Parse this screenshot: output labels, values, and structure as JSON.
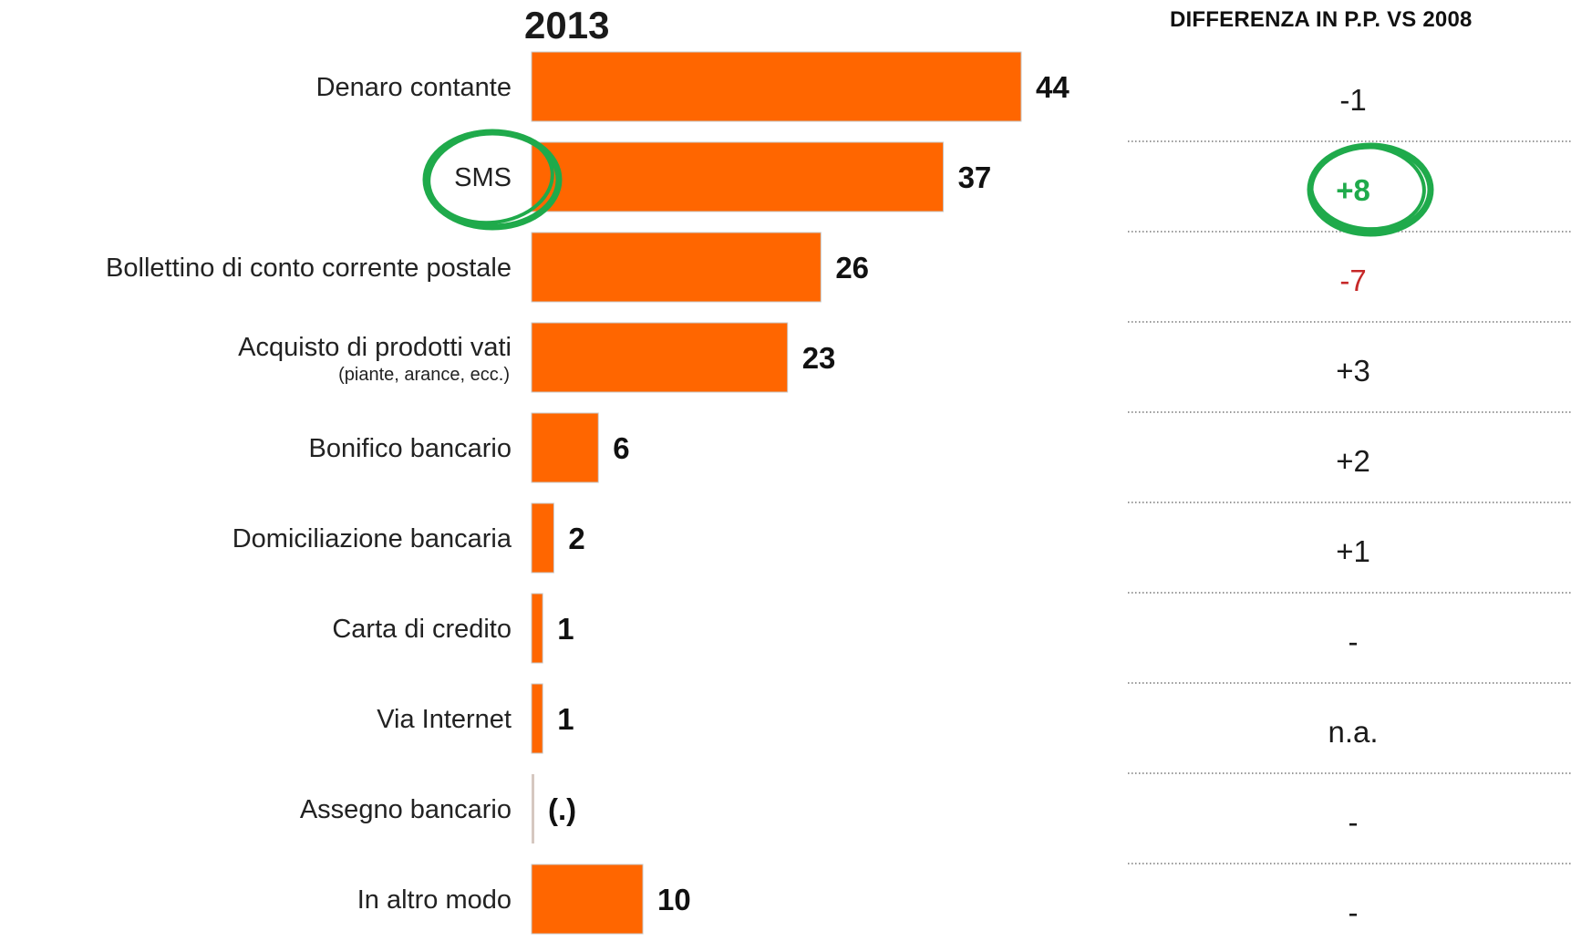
{
  "chart_data": {
    "type": "bar",
    "orientation": "horizontal",
    "title": "2013",
    "bar_color": "#ff6600",
    "categories": [
      "Denaro contante",
      "SMS",
      "Bollettino di conto corrente postale",
      "Acquisto di prodotti vati",
      "Bonifico bancario",
      "Domiciliazione bancaria",
      "Carta di credito",
      "Via Internet",
      "Assegno bancario",
      "In altro modo"
    ],
    "category_sublabels": [
      "",
      "",
      "",
      "(piante, arance, ecc.)",
      "",
      "",
      "",
      "",
      "",
      ""
    ],
    "values": [
      44,
      37,
      26,
      23,
      6,
      2,
      1,
      1,
      0,
      10
    ],
    "value_labels": [
      "44",
      "37",
      "26",
      "23",
      "6",
      "2",
      "1",
      "1",
      "(.)",
      "10"
    ],
    "xlim": [
      0,
      44
    ],
    "grid": false,
    "difference_column": {
      "title": "DIFFERENZA IN P.P. VS 2008",
      "values": [
        "-1",
        "+8",
        "-7",
        "+3",
        "+2",
        "+1",
        "-",
        "n.a.",
        "-",
        "-"
      ],
      "colors": [
        "#1a1a1a",
        "#1faa4b",
        "#c62828",
        "#1a1a1a",
        "#1a1a1a",
        "#1a1a1a",
        "#1a1a1a",
        "#1a1a1a",
        "#1a1a1a",
        "#1a1a1a"
      ],
      "bold": [
        false,
        true,
        false,
        false,
        false,
        false,
        false,
        false,
        false,
        false
      ]
    },
    "highlight_color": "#1faa4b",
    "highlighted_category_index": 1
  }
}
